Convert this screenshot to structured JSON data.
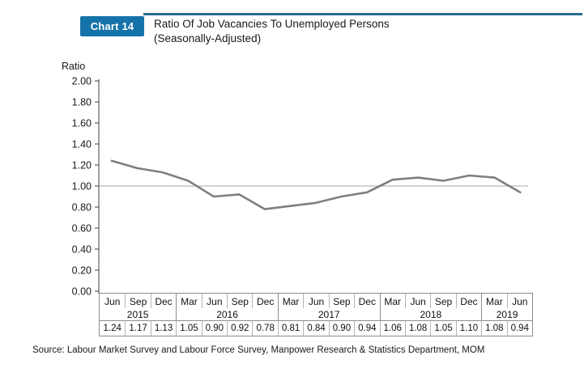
{
  "header": {
    "badge_label": "Chart 14",
    "title_line1": "Ratio Of Job Vacancies To Unemployed Persons",
    "title_line2": "(Seasonally-Adjusted)"
  },
  "source_note": "Source: Labour Market Survey and Labour Force Survey, Manpower Research & Statistics Department, MOM",
  "colors": {
    "badge_bg": "#1673A9",
    "header_rule": "#266C91",
    "data_line": "#7F7F7F",
    "reference_line": "#A8A8A8",
    "axis": "#404040",
    "table_border": "#8C8C8C",
    "table_separator": "#B5B5B5"
  },
  "chart_data": {
    "type": "line",
    "title": "Ratio Of Job Vacancies To Unemployed Persons (Seasonally-Adjusted)",
    "ylabel": "Ratio",
    "xlabel": "",
    "ylim": [
      0.0,
      2.0
    ],
    "ytick_step": 0.2,
    "reference_line": 1.0,
    "grid": "single horizontal reference line at 1.00",
    "legend": "none",
    "categories": [
      "Jun",
      "Sep",
      "Dec",
      "Mar",
      "Jun",
      "Sep",
      "Dec",
      "Mar",
      "Jun",
      "Sep",
      "Dec",
      "Mar",
      "Jun",
      "Sep",
      "Dec",
      "Mar",
      "Jun"
    ],
    "year_groups": [
      {
        "year": "2015",
        "span": 3
      },
      {
        "year": "2016",
        "span": 4
      },
      {
        "year": "2017",
        "span": 4
      },
      {
        "year": "2018",
        "span": 4
      },
      {
        "year": "2019",
        "span": 2
      }
    ],
    "values": [
      1.24,
      1.17,
      1.13,
      1.05,
      0.9,
      0.92,
      0.78,
      0.81,
      0.84,
      0.9,
      0.94,
      1.06,
      1.08,
      1.05,
      1.1,
      1.08,
      0.94
    ]
  }
}
